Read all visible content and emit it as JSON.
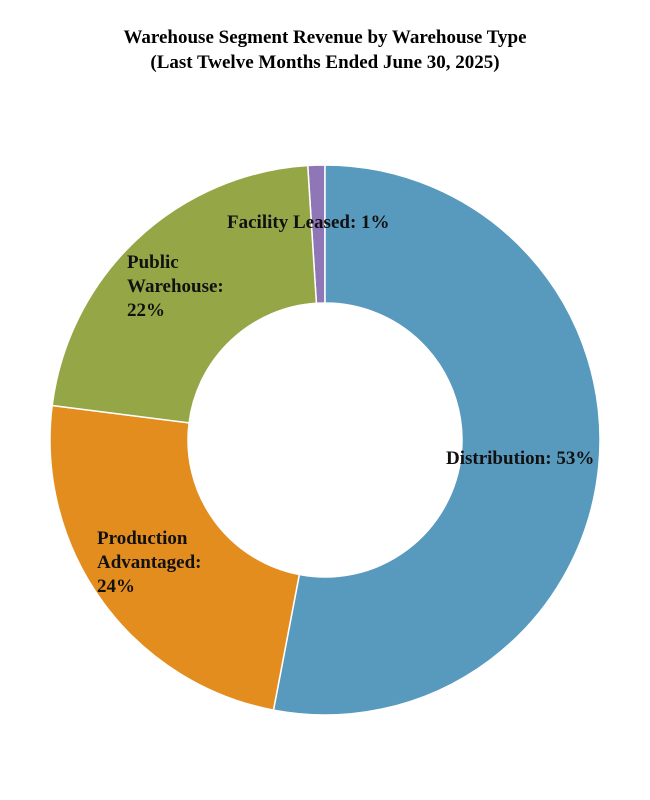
{
  "chart_data": {
    "type": "pie",
    "variant": "donut",
    "title": "Warehouse Segment Revenue by Warehouse Type",
    "subtitle": "(Last Twelve Months Ended June 30, 2025)",
    "slices": [
      {
        "key": "distribution",
        "value": 53,
        "label_lines": [
          "Distribution: 53%"
        ],
        "color": "#5899be"
      },
      {
        "key": "production",
        "value": 24,
        "label_lines": [
          "Production",
          "Advantaged:",
          "24%"
        ],
        "color": "#e38d1f"
      },
      {
        "key": "public",
        "value": 22,
        "label_lines": [
          "Public",
          "Warehouse:",
          "22%"
        ],
        "color": "#95a646"
      },
      {
        "key": "leased",
        "value": 1,
        "label_lines": [
          "Facility Leased: 1%"
        ],
        "color": "#8f76b7"
      }
    ],
    "legend": "none"
  }
}
